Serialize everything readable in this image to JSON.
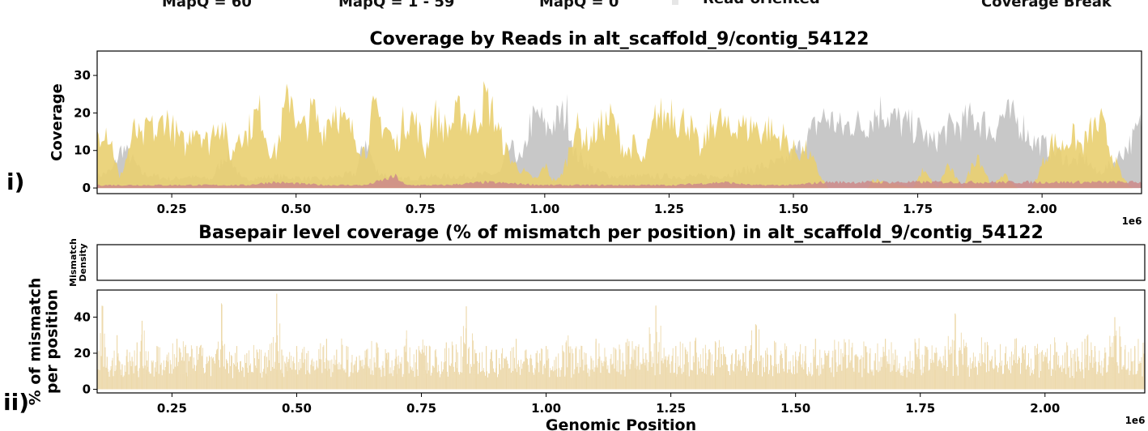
{
  "legend": {
    "items": [
      {
        "label": "MapQ = 60",
        "color": "#c8c8c8"
      },
      {
        "label": "MapQ = 1 - 59",
        "color": "#e9cf70"
      },
      {
        "label": "MapQ = 0",
        "color": "#cc8a8a"
      },
      {
        "label": "Read-oriented",
        "color": "#e6e6e6"
      },
      {
        "label": "Coverage Break",
        "color": "#8e4e8e"
      }
    ]
  },
  "panel_tags": {
    "top": "i)",
    "bottom": "ii)"
  },
  "colors": {
    "mapq60": "#c8c8c8",
    "mapq1_59": "#e9cf70",
    "mapq0": "#cc8a8a",
    "mismatch": "#edd9ab",
    "axis": "#000000"
  },
  "chart_data": [
    {
      "type": "area",
      "title": "Coverage by Reads in alt_scaffold_9/contig_54122",
      "xlabel": "",
      "ylabel": "Coverage",
      "xlim": [
        0.1,
        2.2
      ],
      "ylim": [
        -1.5,
        36.5
      ],
      "xticks": [
        0.25,
        0.5,
        0.75,
        1.0,
        1.25,
        1.5,
        1.75,
        2.0
      ],
      "xtick_labels": [
        "0.25",
        "0.50",
        "0.75",
        "1.00",
        "1.25",
        "1.50",
        "1.75",
        "2.00"
      ],
      "yticks": [
        0,
        10,
        20,
        30
      ],
      "ytick_labels": [
        "0",
        "10",
        "20",
        "30"
      ],
      "x_unit": "1e6",
      "grid": false,
      "series": [
        {
          "name": "MapQ = 60",
          "x": [
            0.1,
            0.13,
            0.15,
            0.17,
            0.19,
            0.25,
            0.28,
            0.33,
            0.36,
            0.375,
            0.39,
            0.46,
            0.55,
            0.62,
            0.64,
            0.66,
            0.7,
            0.78,
            0.83,
            0.91,
            0.93,
            0.955,
            0.97,
            0.99,
            1.0,
            1.03,
            1.045,
            1.06,
            1.1,
            1.14,
            1.25,
            1.35,
            1.48,
            1.52,
            1.54,
            1.555,
            1.57,
            1.6,
            1.62,
            1.64,
            1.66,
            1.68,
            1.7,
            1.72,
            1.74,
            1.76,
            1.78,
            1.8,
            1.82,
            1.84,
            1.86,
            1.88,
            1.9,
            1.92,
            1.94,
            1.96,
            1.98,
            2.0,
            2.03,
            2.06,
            2.09,
            2.11,
            2.14,
            2.16,
            2.18,
            2.2
          ],
          "values": [
            4,
            6,
            14,
            10,
            5,
            3,
            4,
            3,
            12,
            8,
            3,
            4,
            3,
            5,
            17,
            6,
            3,
            4,
            4,
            5,
            14,
            9,
            22,
            25,
            20,
            24,
            26,
            12,
            6,
            4,
            4,
            4,
            9,
            15,
            20,
            24,
            24,
            20,
            23,
            21,
            25,
            27,
            24,
            22,
            21,
            19,
            15,
            19,
            21,
            22,
            24,
            23,
            19,
            25,
            24,
            22,
            16,
            15,
            12,
            9,
            10,
            5,
            8,
            12,
            16,
            22
          ]
        },
        {
          "name": "MapQ = 1 - 59",
          "x": [
            0.1,
            0.115,
            0.13,
            0.145,
            0.16,
            0.175,
            0.19,
            0.205,
            0.22,
            0.235,
            0.25,
            0.265,
            0.28,
            0.295,
            0.31,
            0.325,
            0.34,
            0.355,
            0.37,
            0.385,
            0.4,
            0.415,
            0.43,
            0.445,
            0.46,
            0.475,
            0.49,
            0.505,
            0.52,
            0.535,
            0.55,
            0.565,
            0.58,
            0.595,
            0.61,
            0.625,
            0.64,
            0.655,
            0.67,
            0.685,
            0.7,
            0.715,
            0.73,
            0.745,
            0.76,
            0.775,
            0.79,
            0.805,
            0.82,
            0.835,
            0.85,
            0.865,
            0.88,
            0.895,
            0.91,
            0.925,
            0.94,
            0.955,
            0.97,
            0.985,
            1.0,
            1.015,
            1.03,
            1.045,
            1.06,
            1.075,
            1.09,
            1.105,
            1.12,
            1.135,
            1.15,
            1.165,
            1.18,
            1.195,
            1.21,
            1.225,
            1.24,
            1.255,
            1.27,
            1.285,
            1.3,
            1.315,
            1.33,
            1.345,
            1.36,
            1.375,
            1.39,
            1.405,
            1.42,
            1.435,
            1.45,
            1.465,
            1.48,
            1.495,
            1.51,
            1.525,
            1.54,
            1.555,
            1.57,
            1.65,
            1.66,
            1.74,
            1.76,
            1.79,
            1.81,
            1.84,
            1.87,
            1.9,
            1.92,
            1.95,
            1.98,
            2.0,
            2.02,
            2.04,
            2.06,
            2.08,
            2.1,
            2.12,
            2.14,
            2.16,
            2.18,
            2.2
          ],
          "values": [
            18,
            22,
            15,
            3,
            11,
            20,
            16,
            22,
            18,
            25,
            21,
            17,
            14,
            23,
            19,
            15,
            24,
            20,
            10,
            20,
            18,
            24,
            26,
            14,
            12,
            25,
            34,
            20,
            21,
            27,
            19,
            24,
            28,
            22,
            20,
            16,
            12,
            26,
            23,
            20,
            14,
            22,
            25,
            21,
            12,
            26,
            22,
            20,
            24,
            27,
            21,
            24,
            31,
            26,
            18,
            12,
            8,
            6,
            4,
            3,
            8,
            3,
            3,
            10,
            22,
            18,
            16,
            20,
            22,
            24,
            17,
            12,
            15,
            8,
            15,
            26,
            24,
            28,
            22,
            24,
            18,
            12,
            20,
            24,
            22,
            18,
            24,
            20,
            22,
            19,
            21,
            17,
            18,
            14,
            12,
            13,
            9,
            4,
            0,
            0,
            3,
            0,
            6,
            0,
            8,
            0,
            12,
            0,
            5,
            0,
            0,
            8,
            16,
            14,
            18,
            14,
            20,
            22,
            12,
            4,
            0,
            0
          ]
        },
        {
          "name": "MapQ = 0",
          "x": [
            0.16,
            0.3,
            0.4,
            0.45,
            0.56,
            0.6,
            0.64,
            0.7,
            0.72,
            0.8,
            0.88,
            1.0,
            1.13,
            1.21,
            1.26,
            1.36,
            1.42,
            1.5,
            1.56
          ],
          "values": [
            1,
            1,
            1,
            2,
            1,
            1,
            1,
            4,
            1,
            1,
            2,
            1,
            1,
            1,
            1,
            2,
            1,
            1,
            2
          ]
        }
      ]
    },
    {
      "type": "area",
      "title": "Basepair level coverage (% of mismatch per position) in alt_scaffold_9/contig_54122",
      "xlabel": "Genomic Position",
      "ylabel": "Mismatch Density",
      "xlim": [
        0.1,
        2.2
      ],
      "series": []
    },
    {
      "type": "area",
      "title": "",
      "xlabel": "Genomic Position",
      "ylabel": "% of mismatch per position",
      "xlim": [
        0.1,
        2.2
      ],
      "ylim": [
        -2,
        55
      ],
      "xticks": [
        0.25,
        0.5,
        0.75,
        1.0,
        1.25,
        1.5,
        1.75,
        2.0
      ],
      "xtick_labels": [
        "0.25",
        "0.50",
        "0.75",
        "1.00",
        "1.25",
        "1.50",
        "1.75",
        "2.00"
      ],
      "yticks": [
        0,
        20,
        40
      ],
      "ytick_labels": [
        "0",
        "20",
        "40"
      ],
      "x_unit": "1e6",
      "grid": false,
      "series": [
        {
          "name": "% of mismatch per position",
          "x": [
            0.1,
            0.11,
            0.12,
            0.13,
            0.14,
            0.15,
            0.16,
            0.17,
            0.18,
            0.19,
            0.2,
            0.22,
            0.24,
            0.26,
            0.28,
            0.3,
            0.32,
            0.34,
            0.35,
            0.36,
            0.38,
            0.4,
            0.42,
            0.44,
            0.46,
            0.47,
            0.48,
            0.5,
            0.52,
            0.54,
            0.56,
            0.58,
            0.6,
            0.62,
            0.64,
            0.66,
            0.68,
            0.7,
            0.72,
            0.74,
            0.76,
            0.78,
            0.8,
            0.82,
            0.84,
            0.86,
            0.88,
            0.9,
            0.92,
            0.94,
            0.96,
            0.98,
            1.0,
            1.02,
            1.04,
            1.06,
            1.08,
            1.1,
            1.12,
            1.14,
            1.16,
            1.18,
            1.2,
            1.22,
            1.24,
            1.26,
            1.28,
            1.3,
            1.32,
            1.34,
            1.36,
            1.38,
            1.4,
            1.42,
            1.44,
            1.46,
            1.48,
            1.5,
            1.52,
            1.54,
            1.56,
            1.58,
            1.6,
            1.62,
            1.64,
            1.66,
            1.68,
            1.7,
            1.72,
            1.74,
            1.76,
            1.78,
            1.8,
            1.82,
            1.84,
            1.86,
            1.88,
            1.9,
            1.92,
            1.94,
            1.96,
            1.98,
            2.0,
            2.02,
            2.04,
            2.06,
            2.08,
            2.1,
            2.12,
            2.14,
            2.16,
            2.18,
            2.2
          ],
          "values": [
            20,
            46,
            18,
            16,
            30,
            14,
            22,
            18,
            26,
            38,
            16,
            24,
            18,
            28,
            20,
            24,
            18,
            22,
            47,
            16,
            24,
            20,
            22,
            18,
            53,
            22,
            18,
            24,
            20,
            16,
            28,
            22,
            24,
            18,
            22,
            26,
            20,
            18,
            28,
            22,
            24,
            18,
            26,
            22,
            46,
            20,
            24,
            22,
            18,
            28,
            22,
            20,
            24,
            18,
            26,
            22,
            20,
            28,
            18,
            22,
            26,
            24,
            20,
            46,
            18,
            24,
            22,
            28,
            20,
            26,
            18,
            22,
            24,
            36,
            20,
            26,
            22,
            18,
            24,
            28,
            20,
            22,
            26,
            18,
            24,
            20,
            28,
            22,
            18,
            26,
            24,
            20,
            22,
            42,
            24,
            18,
            26,
            22,
            20,
            28,
            22,
            24,
            18,
            26,
            20,
            22,
            28,
            24,
            20,
            40,
            22,
            24,
            26
          ]
        }
      ]
    }
  ]
}
